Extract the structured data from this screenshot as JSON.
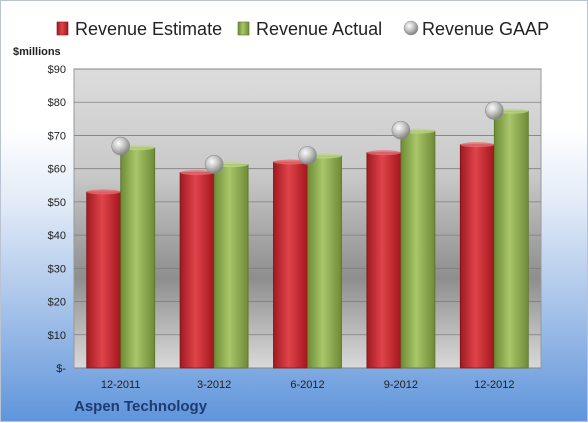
{
  "company": "Aspen Technology",
  "chart_data": {
    "type": "bar",
    "categories": [
      "12-2011",
      "3-2012",
      "6-2012",
      "9-2012",
      "12-2012"
    ],
    "series": [
      {
        "name": "Revenue Estimate",
        "values": [
          53,
          58.8,
          62,
          64.8,
          67.2
        ],
        "color": "#c0262d"
      },
      {
        "name": "Revenue Actual",
        "values": [
          66.3,
          61.2,
          63.8,
          71.3,
          77.3
        ],
        "color": "#8fae4e"
      },
      {
        "name": "Revenue GAAP",
        "values": [
          66.8,
          61.3,
          64,
          71.6,
          77.5
        ],
        "color": "#b5b5b5",
        "marker": "sphere"
      }
    ],
    "ylabel": "$millions",
    "yticks": [
      "$-",
      "$10",
      "$20",
      "$30",
      "$40",
      "$50",
      "$60",
      "$70",
      "$80",
      "$90"
    ],
    "ylim": [
      0,
      90
    ],
    "grid": true,
    "legend": "top"
  }
}
